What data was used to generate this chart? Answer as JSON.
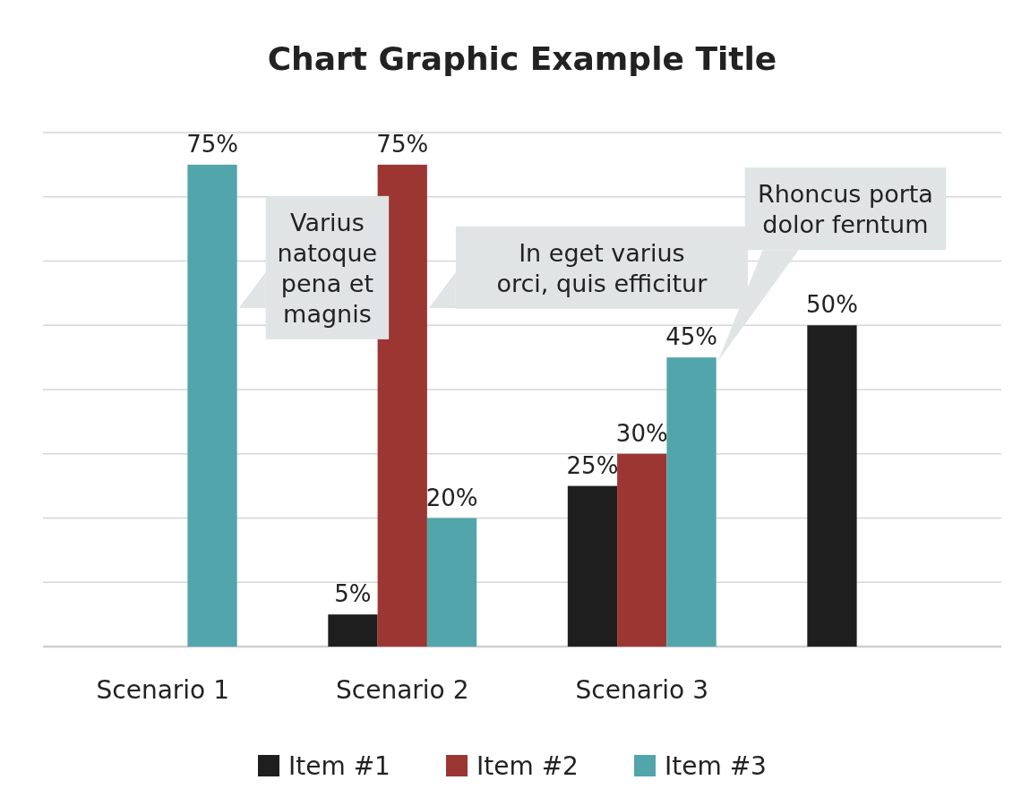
{
  "chart_data": {
    "type": "bar",
    "title": "Chart Graphic Example Title",
    "categories": [
      "Scenario 1",
      "Scenario 2",
      "Scenario 3",
      null
    ],
    "series": [
      {
        "name": "Item #1",
        "color": "#1e1e1e",
        "values": [
          null,
          5,
          25,
          50
        ],
        "value_labels": [
          null,
          "5%",
          "25%",
          "50%"
        ]
      },
      {
        "name": "Item #2",
        "color": "#9b3633",
        "values": [
          null,
          75,
          30,
          null
        ],
        "value_labels": [
          null,
          "75%",
          "30%",
          null
        ]
      },
      {
        "name": "Item #3",
        "color": "#52a5ab",
        "values": [
          75,
          20,
          45,
          null
        ],
        "value_labels": [
          "75%",
          "20%",
          "45%",
          null
        ]
      }
    ],
    "ylim": [
      0,
      80
    ],
    "yticks": [
      {
        "value": 0,
        "label": null
      },
      {
        "value": 10,
        "label": null
      },
      {
        "value": 20,
        "label": null
      },
      {
        "value": 30,
        "label": null
      },
      {
        "value": 40,
        "label": null
      },
      {
        "value": 50,
        "label": null
      },
      {
        "value": 60,
        "label": null
      },
      {
        "value": 70,
        "label": null
      },
      {
        "value": 80,
        "label": null
      }
    ],
    "tick_labels": "x",
    "grid": "y",
    "legend": "bottom",
    "annotations": [
      "Varius\nnatoque\npena et\nmagnis",
      "In eget varius\norci, quis efficitur",
      "Rhoncus porta\ndolor ferntum"
    ]
  }
}
